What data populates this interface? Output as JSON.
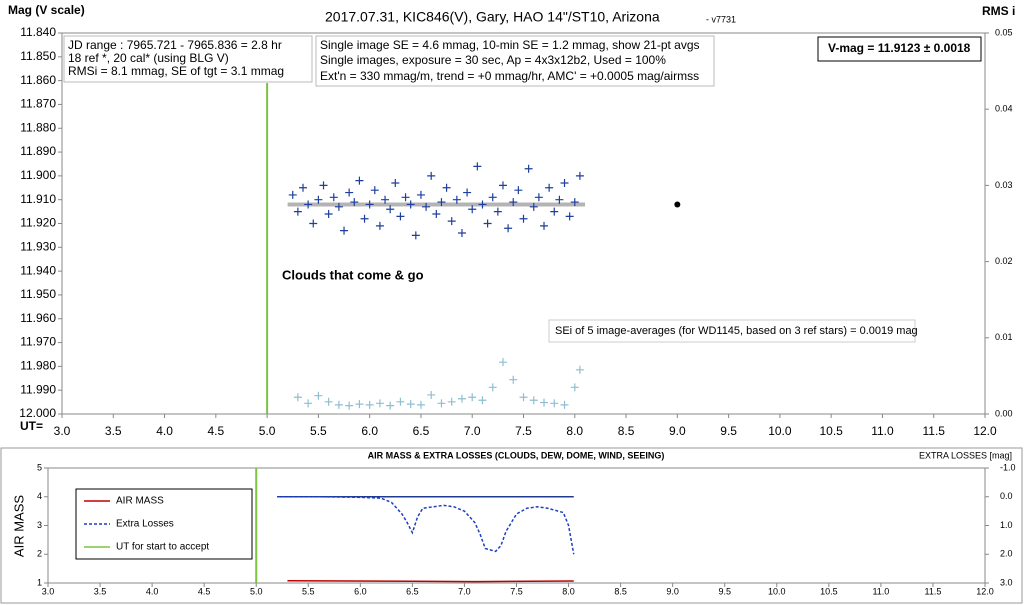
{
  "chart_data": [
    {
      "type": "scatter",
      "title": "2017.07.31,  KIC846(V),  Gary,  HAO  14\"/ST10,  Arizona",
      "subtitle": "- v7731",
      "y_label": "Mag (V scale)",
      "y2_label": "RMS i",
      "x_label": "UT=",
      "info_left": [
        "JD range : 7965.721 - 7965.836 = 2.8 hr",
        "18 ref *, 20 cal* (using BLG V)",
        "RMSi = 8.1 mmag, SE of tgt = 3.1 mmag"
      ],
      "info_center": [
        "Single image SE = 4.6 mmag, 10-min SE = 1.2 mmag, show 21-pt avgs",
        "Single images, exposure = 30 sec, Ap = 4x3x12b2, Used = 100%",
        "Ext'n = 330 mmag/m, trend = +0 mmag/hr, AMC' = +0.0005 mag/airmss"
      ],
      "vmag_box": "V-mag = 11.9123 ± 0.0018",
      "annotation_clouds": "Clouds that come & go",
      "annotation_sei": "SEi of 5 image-averages (for WD1145, based on 3 ref stars) = 0.0019 mag",
      "xlim": [
        3.0,
        12.0
      ],
      "xticks": [
        {
          "value": 3.0,
          "label": "3.0"
        },
        {
          "value": 3.5,
          "label": "3.5"
        },
        {
          "value": 4.0,
          "label": "4.0"
        },
        {
          "value": 4.5,
          "label": "4.5"
        },
        {
          "value": 5.0,
          "label": "5.0"
        },
        {
          "value": 5.5,
          "label": "5.5"
        },
        {
          "value": 6.0,
          "label": "6.0"
        },
        {
          "value": 6.5,
          "label": "6.5"
        },
        {
          "value": 7.0,
          "label": "7.0"
        },
        {
          "value": 7.5,
          "label": "7.5"
        },
        {
          "value": 8.0,
          "label": "8.0"
        },
        {
          "value": 8.5,
          "label": "8.5"
        },
        {
          "value": 9.0,
          "label": "9.0"
        },
        {
          "value": 9.5,
          "label": "9.5"
        },
        {
          "value": 10.0,
          "label": "10.0"
        },
        {
          "value": 10.5,
          "label": "10.5"
        },
        {
          "value": 11.0,
          "label": "11.0"
        },
        {
          "value": 11.5,
          "label": "11.5"
        },
        {
          "value": 12.0,
          "label": "12.0"
        }
      ],
      "ylim": [
        12.0,
        11.84
      ],
      "yticks": [
        {
          "value": 11.84,
          "label": "11.840"
        },
        {
          "value": 11.85,
          "label": "11.850"
        },
        {
          "value": 11.86,
          "label": "11.860"
        },
        {
          "value": 11.87,
          "label": "11.870"
        },
        {
          "value": 11.88,
          "label": "11.880"
        },
        {
          "value": 11.89,
          "label": "11.890"
        },
        {
          "value": 11.9,
          "label": "11.900"
        },
        {
          "value": 11.91,
          "label": "11.910"
        },
        {
          "value": 11.92,
          "label": "11.920"
        },
        {
          "value": 11.93,
          "label": "11.930"
        },
        {
          "value": 11.94,
          "label": "11.940"
        },
        {
          "value": 11.95,
          "label": "11.950"
        },
        {
          "value": 11.96,
          "label": "11.960"
        },
        {
          "value": 11.97,
          "label": "11.970"
        },
        {
          "value": 11.98,
          "label": "11.980"
        },
        {
          "value": 11.99,
          "label": "11.990"
        },
        {
          "value": 12.0,
          "label": "12.000"
        }
      ],
      "y2lim": [
        0,
        0.05
      ],
      "y2ticks": [
        {
          "value": 0,
          "label": "0.00"
        },
        {
          "value": 0.01,
          "label": "0.01"
        },
        {
          "value": 0.02,
          "label": "0.02"
        },
        {
          "value": 0.03,
          "label": "0.03"
        },
        {
          "value": 0.04,
          "label": "0.04"
        },
        {
          "value": 0.05,
          "label": "0.05"
        }
      ],
      "start_ut": {
        "x": 5.0,
        "color": "#7dc242"
      },
      "series": [
        {
          "style": "thick",
          "color": "#b4b4b4",
          "x": [
            5.2,
            8.1
          ],
          "values": [
            11.912,
            11.912
          ]
        },
        {
          "style": "plus",
          "color": "#1f3f9f",
          "x": [
            5.25,
            5.3,
            5.35,
            5.4,
            5.45,
            5.5,
            5.55,
            5.6,
            5.65,
            5.7,
            5.75,
            5.8,
            5.85,
            5.9,
            5.95,
            6.0,
            6.05,
            6.1,
            6.15,
            6.2,
            6.25,
            6.3,
            6.35,
            6.4,
            6.45,
            6.5,
            6.55,
            6.6,
            6.65,
            6.7,
            6.75,
            6.8,
            6.85,
            6.9,
            6.95,
            7.0,
            7.05,
            7.1,
            7.15,
            7.2,
            7.25,
            7.3,
            7.35,
            7.4,
            7.45,
            7.5,
            7.55,
            7.6,
            7.65,
            7.7,
            7.75,
            7.8,
            7.85,
            7.9,
            7.95,
            8.0,
            8.05
          ],
          "values": [
            11.908,
            11.915,
            11.905,
            11.912,
            11.92,
            11.91,
            11.904,
            11.916,
            11.909,
            11.913,
            11.923,
            11.907,
            11.911,
            11.902,
            11.918,
            11.912,
            11.906,
            11.921,
            11.91,
            11.914,
            11.903,
            11.917,
            11.909,
            11.912,
            11.925,
            11.908,
            11.913,
            11.9,
            11.916,
            11.911,
            11.905,
            11.919,
            11.91,
            11.924,
            11.907,
            11.914,
            11.896,
            11.912,
            11.92,
            11.909,
            11.915,
            11.904,
            11.922,
            11.911,
            11.906,
            11.918,
            11.897,
            11.913,
            11.909,
            11.921,
            11.905,
            11.915,
            11.91,
            11.903,
            11.917,
            11.911,
            11.9
          ]
        },
        {
          "style": "plus",
          "color": "#8fbfcf",
          "axis": "y2",
          "x": [
            5.3,
            5.4,
            5.5,
            5.6,
            5.7,
            5.8,
            5.9,
            6.0,
            6.1,
            6.2,
            6.3,
            6.4,
            6.5,
            6.6,
            6.7,
            6.8,
            6.9,
            7.0,
            7.1,
            7.2,
            7.3,
            7.4,
            7.5,
            7.6,
            7.7,
            7.8,
            7.9,
            8.0,
            8.05
          ],
          "values": [
            0.0022,
            0.0014,
            0.0024,
            0.0016,
            0.0012,
            0.0011,
            0.0013,
            0.0012,
            0.0014,
            0.0011,
            0.0016,
            0.0013,
            0.0012,
            0.0025,
            0.0014,
            0.0016,
            0.002,
            0.0022,
            0.0018,
            0.0035,
            0.0068,
            0.0045,
            0.0022,
            0.0018,
            0.0015,
            0.0014,
            0.0012,
            0.0035,
            0.0058
          ]
        }
      ],
      "point": {
        "x": 9.0,
        "value": 11.912,
        "color": "#000000"
      }
    },
    {
      "type": "line",
      "title": "AIR MASS & EXTRA LOSSES (CLOUDS, DEW, DOME, WIND, SEEING)",
      "y_label": "AIR MASS",
      "y2_label": "EXTRA LOSSES [mag]",
      "xlim": [
        3.0,
        12.0
      ],
      "xticks": [
        {
          "value": 3.0,
          "label": "3.0"
        },
        {
          "value": 3.5,
          "label": "3.5"
        },
        {
          "value": 4.0,
          "label": "4.0"
        },
        {
          "value": 4.5,
          "label": "4.5"
        },
        {
          "value": 5.0,
          "label": "5.0"
        },
        {
          "value": 5.5,
          "label": "5.5"
        },
        {
          "value": 6.0,
          "label": "6.0"
        },
        {
          "value": 6.5,
          "label": "6.5"
        },
        {
          "value": 7.0,
          "label": "7.0"
        },
        {
          "value": 7.5,
          "label": "7.5"
        },
        {
          "value": 8.0,
          "label": "8.0"
        },
        {
          "value": 8.5,
          "label": "8.5"
        },
        {
          "value": 9.0,
          "label": "9.0"
        },
        {
          "value": 9.5,
          "label": "9.5"
        },
        {
          "value": 10.0,
          "label": "10.0"
        },
        {
          "value": 10.5,
          "label": "10.5"
        },
        {
          "value": 11.0,
          "label": "11.0"
        },
        {
          "value": 11.5,
          "label": "11.5"
        },
        {
          "value": 12.0,
          "label": "12.0"
        }
      ],
      "ylim": [
        1,
        5
      ],
      "yticks": [
        1,
        2,
        3,
        4,
        5
      ],
      "y2lim": [
        3.0,
        -1.0
      ],
      "y2ticks": [
        {
          "value": -1.0,
          "label": "-1.0"
        },
        {
          "value": 0.0,
          "label": "0.0"
        },
        {
          "value": 1.0,
          "label": "1.0"
        },
        {
          "value": 2.0,
          "label": "2.0"
        },
        {
          "value": 3.0,
          "label": "3.0"
        }
      ],
      "start_ut": {
        "name": "UT for start to accept",
        "x": 5.0,
        "color": "#7dc242"
      },
      "series": [
        {
          "name": "AIR MASS",
          "style": "solid",
          "color": "#c00000",
          "x": [
            5.3,
            6.5,
            7.1,
            8.05
          ],
          "values": [
            1.08,
            1.06,
            1.05,
            1.07
          ]
        },
        {
          "style": "solid",
          "color": "#1f3a93",
          "axis": "y2",
          "x": [
            5.2,
            8.05
          ],
          "values": [
            0,
            0
          ]
        },
        {
          "name": "Extra Losses",
          "style": "dashed",
          "color": "#1f3fbf",
          "axis": "y2",
          "x": [
            5.2,
            5.6,
            6.0,
            6.2,
            6.3,
            6.4,
            6.45,
            6.5,
            6.55,
            6.6,
            6.7,
            6.8,
            6.9,
            7.0,
            7.05,
            7.1,
            7.15,
            7.2,
            7.3,
            7.35,
            7.4,
            7.5,
            7.6,
            7.7,
            7.8,
            7.9,
            7.95,
            8.0,
            8.05
          ],
          "values": [
            0.0,
            0.0,
            0.02,
            0.05,
            0.2,
            0.6,
            0.9,
            1.25,
            0.7,
            0.4,
            0.35,
            0.3,
            0.35,
            0.5,
            0.7,
            0.9,
            1.3,
            1.8,
            1.9,
            1.7,
            1.2,
            0.6,
            0.4,
            0.35,
            0.4,
            0.5,
            0.55,
            1.0,
            2.0
          ]
        }
      ]
    }
  ]
}
